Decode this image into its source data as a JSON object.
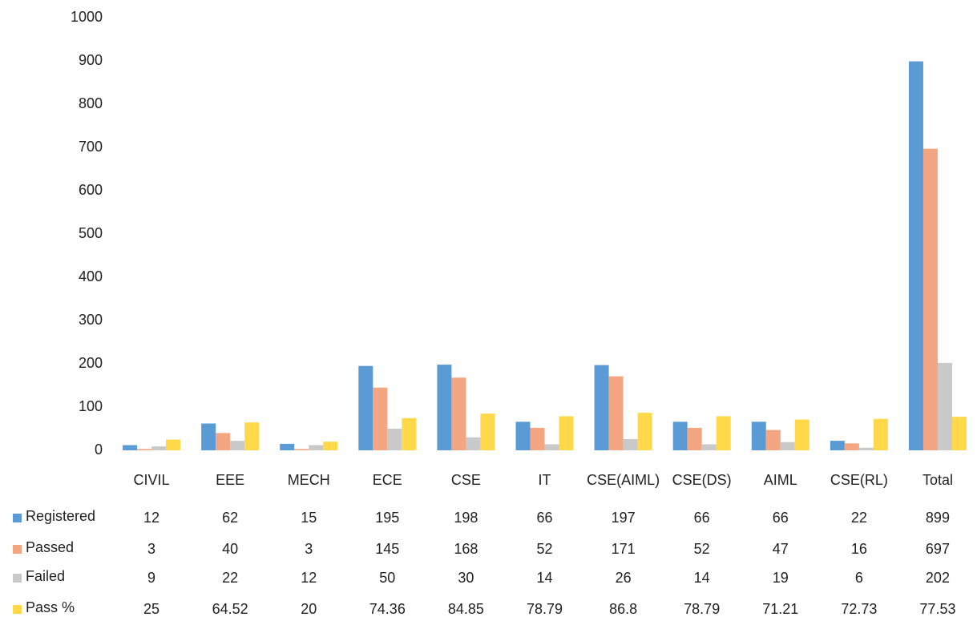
{
  "chart_data": {
    "type": "bar",
    "categories": [
      "CIVIL",
      "EEE",
      "MECH",
      "ECE",
      "CSE",
      "IT",
      "CSE(AIML)",
      "CSE(DS)",
      "AIML",
      "CSE(RL)",
      "Total"
    ],
    "series": [
      {
        "name": "Registered",
        "color": "#5b9bd5",
        "values": [
          12,
          62,
          15,
          195,
          198,
          66,
          197,
          66,
          66,
          22,
          899
        ]
      },
      {
        "name": "Passed",
        "color": "#f4a582",
        "values": [
          3,
          40,
          3,
          145,
          168,
          52,
          171,
          52,
          47,
          16,
          697
        ]
      },
      {
        "name": "Failed",
        "color": "#c9c9c9",
        "values": [
          9,
          22,
          12,
          50,
          30,
          14,
          26,
          14,
          19,
          6,
          202
        ]
      },
      {
        "name": "Pass %",
        "color": "#ffd94a",
        "values": [
          25,
          64.52,
          20,
          74.36,
          84.85,
          78.79,
          86.8,
          78.79,
          71.21,
          72.73,
          77.53
        ]
      }
    ],
    "ylim": [
      0,
      1000
    ],
    "yticks": [
      0,
      100,
      200,
      300,
      400,
      500,
      600,
      700,
      800,
      900,
      1000
    ],
    "grid": false,
    "legend": "data-table"
  }
}
